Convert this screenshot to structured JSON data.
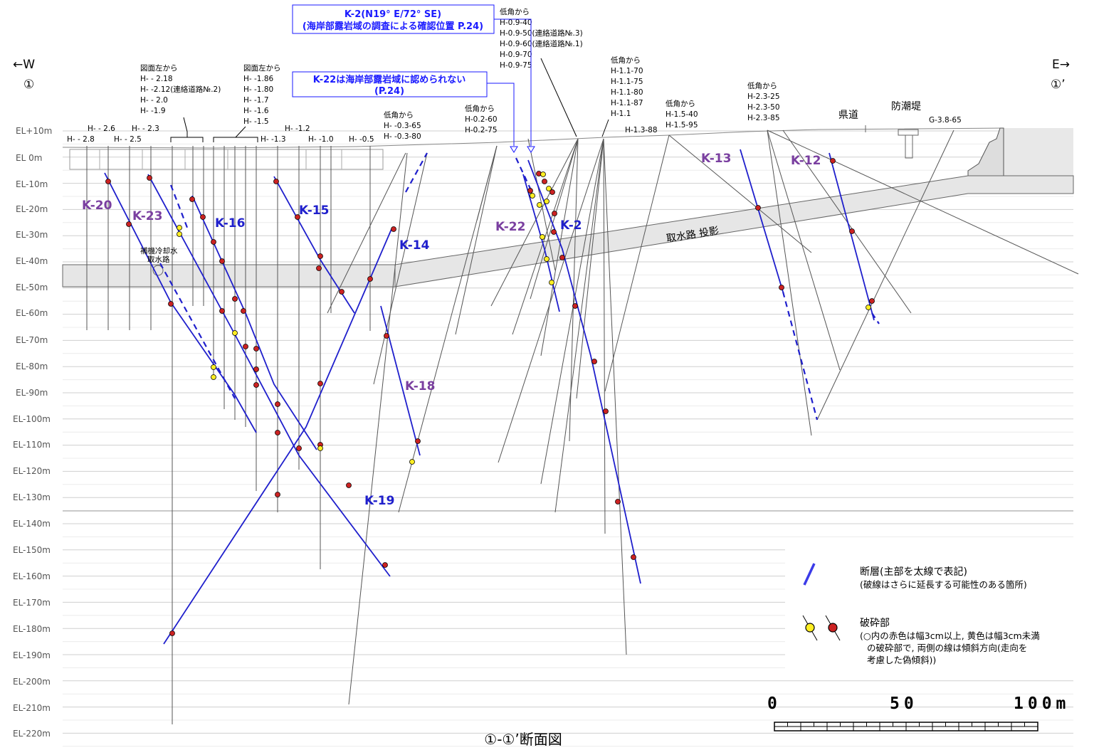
{
  "title": "①-①’断面図",
  "directions": {
    "west_arrow": "←W",
    "west_mark": "①",
    "east_arrow": "E→",
    "east_mark": "①’"
  },
  "elevation_labels": [
    "EL+10m",
    "EL 0m",
    "EL-10m",
    "EL-20m",
    "EL-30m",
    "EL-40m",
    "EL-50m",
    "EL-60m",
    "EL-70m",
    "EL-80m",
    "EL-90m",
    "EL-100m",
    "EL-110m",
    "EL-120m",
    "EL-130m",
    "EL-140m",
    "EL-150m",
    "EL-160m",
    "EL-170m",
    "EL-180m",
    "EL-190m",
    "EL-200m",
    "EL-210m",
    "EL-220m"
  ],
  "borehole_labels": {
    "h26": "H- - 2.6",
    "h23": "H- - 2.3",
    "h28": "H- - 2.8",
    "h25": "H- - 2.5",
    "g1": [
      "図面左から",
      "H- - 2.18",
      "H- -2.12(連絡道路№.2)",
      "H- - 2.0",
      "H- -1.9"
    ],
    "g2": [
      "図面左から",
      "H- -1.86",
      "H- -1.80",
      "H- -1.7",
      "H- -1.6",
      "H- -1.5"
    ],
    "h13": "H- -1.3",
    "h12": "H- -1.2",
    "h10": "H- -1.0",
    "h05": "H- -0.5",
    "g3": [
      "低角から",
      "H- -0.3-65",
      "H- -0.3-80"
    ],
    "g4": [
      "低角から",
      "H-0.2-60",
      "H-0.2-75"
    ],
    "g5": [
      "低角から",
      "H-0.9-40",
      "H-0.9-50(連絡道路№.3)",
      "H-0.9-60(連絡道路№.1)",
      "H-0.9-70",
      "H-0.9-75"
    ],
    "g6": [
      "低角から",
      "H-1.1-70",
      "H-1.1-75",
      "H-1.1-80",
      "H-1.1-87",
      "H-1.1"
    ],
    "h1388": "H-1.3-88",
    "g7": [
      "低角から",
      "H-1.5-40",
      "H-1.5-95"
    ],
    "g8": [
      "低角から",
      "H-2.3-25",
      "H-2.3-50",
      "H-2.3-85"
    ],
    "g3865": "G-3.8-65"
  },
  "places": {
    "road": "県道",
    "seawall": "防潮堤",
    "intake": "取水路 投影",
    "aux_intake": [
      "補機冷却水",
      "取水路"
    ]
  },
  "faults": {
    "k20": "K-20",
    "k23": "K-23",
    "k16": "K-16",
    "k15": "K-15",
    "k14": "K-14",
    "k18": "K-18",
    "k19": "K-19",
    "k22": "K-22",
    "k2": "K-2",
    "k13": "K-13",
    "k12": "K-12"
  },
  "notes": {
    "k2_line1": "K-2(N19° E/72° SE)",
    "k2_line2": "(海岸部露岩域の調査による確認位置 P.24)",
    "k22_line1": "K-22は海岸部露岩域に認められない",
    "k22_line2": "(P.24)"
  },
  "legend": {
    "fault_title": "断層(主部を太線で表記)",
    "fault_note": "(破線はさらに延長する可能性のある箇所)",
    "crush_title": "破砕部",
    "crush_note1": "(○内の赤色は幅3cm以上, 黄色は幅3cm未満",
    "crush_note2": "の破砕部で, 両側の線は傾斜方向(走向を",
    "crush_note3": "考慮した偽傾斜))"
  },
  "scale": {
    "s0": "0",
    "s50": "50",
    "s100": "100m"
  },
  "colors": {
    "fault_blue": "#1f1fcc",
    "fault_purple": "#7a3fa0",
    "crush_red": "#cc2222",
    "crush_yellow": "#ffee22",
    "borehole": "#555555"
  }
}
